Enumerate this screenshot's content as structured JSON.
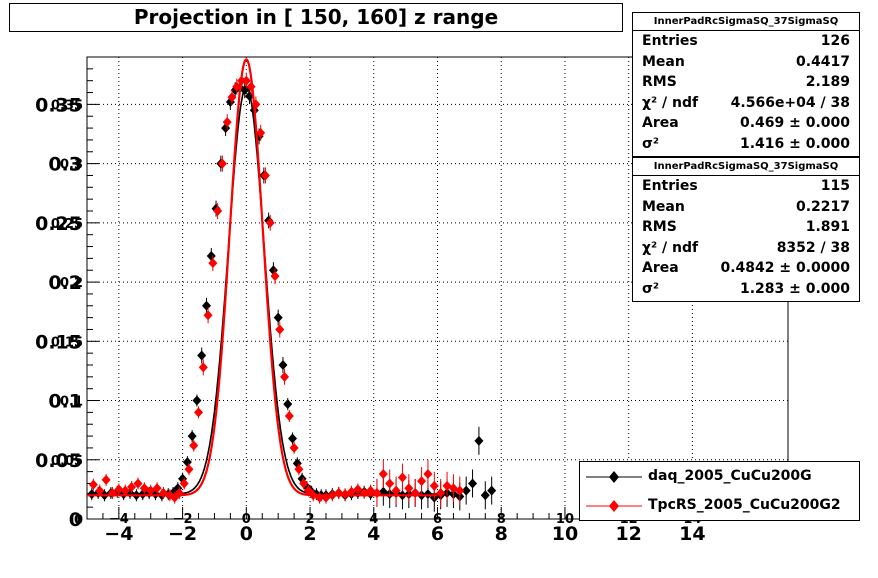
{
  "chart_data": {
    "type": "scatter",
    "title": "Projection in [ 150, 160] z range",
    "xlabel": "",
    "ylabel": "",
    "xlim": [
      -5,
      17
    ],
    "ylim": [
      0,
      0.39
    ],
    "x_ticks": [
      -4,
      -2,
      0,
      2,
      4,
      6,
      8,
      10,
      12,
      14
    ],
    "x_tick_labels": [
      "−4",
      "−2",
      "0",
      "2",
      "4",
      "6",
      "8",
      "10",
      "12",
      "14"
    ],
    "x_ticks_small": [
      -4,
      -2,
      0,
      2,
      4,
      6,
      8,
      10,
      12,
      14
    ],
    "x_tick_labels_small": [
      "−4",
      "−2",
      "0",
      "2",
      "4",
      "6",
      "8",
      "10",
      "12",
      "14"
    ],
    "y_ticks": [
      0,
      0.05,
      0.1,
      0.15,
      0.2,
      0.25,
      0.3,
      0.35
    ],
    "y_tick_labels": [
      "0",
      "0.05",
      "0.1",
      "0.15",
      "0.2",
      "0.25",
      "0.3",
      "0.35"
    ],
    "grid": true,
    "legend_position": "bottom-right",
    "series": [
      {
        "name": "daq_2005_CuCu200G",
        "color": "#000000",
        "marker": "diamond",
        "fit_amplitude": 0.344,
        "fit_sigma": 0.56,
        "baseline": 0.021,
        "x": [
          -4.85,
          -4.65,
          -4.45,
          -4.25,
          -4.05,
          -3.85,
          -3.65,
          -3.45,
          -3.25,
          -3.05,
          -2.85,
          -2.65,
          -2.45,
          -2.3,
          -2.15,
          -2.0,
          -1.85,
          -1.7,
          -1.55,
          -1.4,
          -1.25,
          -1.1,
          -0.95,
          -0.8,
          -0.65,
          -0.5,
          -0.35,
          -0.2,
          -0.05,
          0.1,
          0.25,
          0.4,
          0.55,
          0.7,
          0.85,
          1.0,
          1.15,
          1.3,
          1.45,
          1.6,
          1.75,
          1.9,
          2.05,
          2.2,
          2.35,
          2.5,
          2.7,
          2.9,
          3.1,
          3.3,
          3.5,
          3.7,
          3.9,
          4.1,
          4.3,
          4.5,
          4.7,
          4.9,
          5.1,
          5.3,
          5.5,
          5.7,
          5.9,
          6.1,
          6.3,
          6.5,
          6.7,
          6.9,
          7.1,
          7.3,
          7.5,
          7.7
        ],
        "y": [
          0.021,
          0.022,
          0.02,
          0.022,
          0.023,
          0.021,
          0.022,
          0.02,
          0.021,
          0.022,
          0.021,
          0.02,
          0.021,
          0.022,
          0.026,
          0.034,
          0.048,
          0.07,
          0.1,
          0.138,
          0.18,
          0.222,
          0.262,
          0.3,
          0.33,
          0.352,
          0.362,
          0.364,
          0.362,
          0.357,
          0.345,
          0.323,
          0.29,
          0.252,
          0.21,
          0.17,
          0.13,
          0.097,
          0.068,
          0.047,
          0.034,
          0.027,
          0.023,
          0.021,
          0.02,
          0.02,
          0.021,
          0.022,
          0.02,
          0.021,
          0.022,
          0.023,
          0.021,
          0.022,
          0.023,
          0.021,
          0.022,
          0.02,
          0.021,
          0.022,
          0.02,
          0.021,
          0.018,
          0.02,
          0.022,
          0.021,
          0.019,
          0.024,
          0.03,
          0.066,
          0.02,
          0.024
        ]
      },
      {
        "name": "TpcRS_2005_CuCu200G2",
        "color": "#ff0000",
        "marker": "diamond",
        "fit_amplitude": 0.368,
        "fit_sigma": 0.52,
        "baseline": 0.02,
        "x": [
          -4.8,
          -4.6,
          -4.4,
          -4.2,
          -4.0,
          -3.8,
          -3.6,
          -3.4,
          -3.2,
          -3.0,
          -2.8,
          -2.6,
          -2.4,
          -2.25,
          -2.1,
          -1.95,
          -1.8,
          -1.65,
          -1.5,
          -1.35,
          -1.2,
          -1.05,
          -0.9,
          -0.75,
          -0.6,
          -0.45,
          -0.3,
          -0.15,
          0.0,
          0.15,
          0.3,
          0.45,
          0.6,
          0.75,
          0.9,
          1.05,
          1.2,
          1.35,
          1.5,
          1.65,
          1.8,
          1.95,
          2.1,
          2.3,
          2.5,
          2.7,
          2.9,
          3.1,
          3.3,
          3.5,
          3.7,
          3.9,
          4.1,
          4.3,
          4.5,
          4.7,
          4.9,
          5.1,
          5.3,
          5.5,
          5.7,
          5.9,
          6.1,
          6.3,
          6.5,
          6.7
        ],
        "y": [
          0.029,
          0.024,
          0.033,
          0.022,
          0.025,
          0.024,
          0.027,
          0.03,
          0.026,
          0.024,
          0.026,
          0.022,
          0.02,
          0.018,
          0.022,
          0.03,
          0.042,
          0.062,
          0.09,
          0.128,
          0.172,
          0.216,
          0.26,
          0.3,
          0.335,
          0.356,
          0.365,
          0.37,
          0.37,
          0.365,
          0.35,
          0.326,
          0.29,
          0.25,
          0.205,
          0.16,
          0.12,
          0.087,
          0.06,
          0.042,
          0.03,
          0.024,
          0.02,
          0.018,
          0.018,
          0.02,
          0.022,
          0.021,
          0.023,
          0.025,
          0.022,
          0.024,
          0.022,
          0.038,
          0.03,
          0.024,
          0.035,
          0.026,
          0.022,
          0.032,
          0.038,
          0.028,
          0.022,
          0.028,
          0.026,
          0.024
        ]
      }
    ]
  },
  "stats_boxes": [
    {
      "name": "InnerPadRcSigmaSQ_37SigmaSQ",
      "rows": [
        {
          "key": "Entries",
          "value": "126"
        },
        {
          "key": "Mean",
          "value": "0.4417"
        },
        {
          "key": "RMS",
          "value": "2.189"
        },
        {
          "key": "χ² / ndf",
          "value": "4.566e+04 / 38"
        },
        {
          "key": "Area",
          "value": "0.469 ± 0.000"
        },
        {
          "key": "σ²",
          "value": "1.416 ± 0.000"
        }
      ]
    },
    {
      "name": "InnerPadRcSigmaSQ_37SigmaSQ",
      "rows": [
        {
          "key": "Entries",
          "value": "115"
        },
        {
          "key": "Mean",
          "value": "0.2217"
        },
        {
          "key": "RMS",
          "value": "1.891"
        },
        {
          "key": "χ² / ndf",
          "value": "8352 / 38"
        },
        {
          "key": "Area",
          "value": "0.4842 ± 0.0000"
        },
        {
          "key": "σ²",
          "value": "1.283 ± 0.000"
        }
      ]
    }
  ]
}
